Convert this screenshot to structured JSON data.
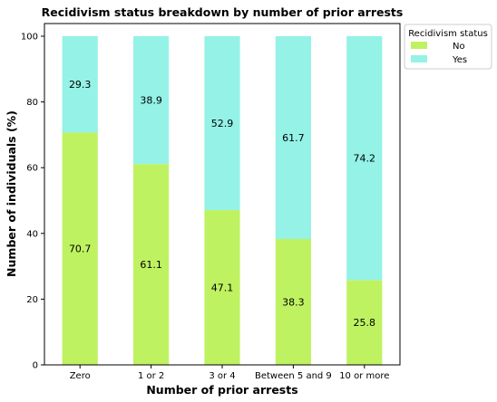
{
  "chart_data": {
    "type": "bar",
    "stacked": true,
    "title": "Recidivism status breakdown by number of prior arrests",
    "xlabel": "Number of prior arrests",
    "ylabel": "Number of individuals (%)",
    "categories": [
      "Zero",
      "1 or 2",
      "3 or 4",
      "Between 5 and 9",
      "10 or more"
    ],
    "series": [
      {
        "name": "No",
        "values": [
          70.7,
          61.1,
          47.1,
          38.3,
          25.8
        ],
        "color": "#bff261"
      },
      {
        "name": "Yes",
        "values": [
          29.3,
          38.9,
          52.9,
          61.7,
          74.2
        ],
        "color": "#94f2e6"
      }
    ],
    "ylim": [
      0,
      100
    ],
    "yticks": [
      0,
      20,
      40,
      60,
      80,
      100
    ],
    "grid": false,
    "legend": {
      "title": "Recidivism status",
      "position": "outside-top-right"
    }
  }
}
